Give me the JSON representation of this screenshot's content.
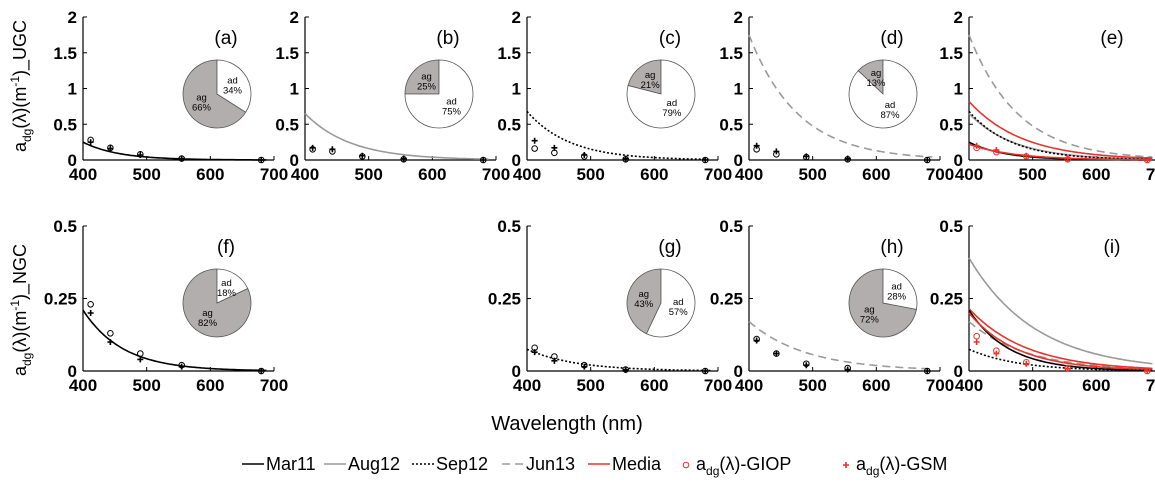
{
  "chart_data": {
    "type": "line",
    "xlabel": "Wavelength (nm)",
    "ylabel_top": "adg(λ)(m-1)_UGC",
    "ylabel_bottom": "adg(λ)(m-1)_NGC",
    "xlim": [
      400,
      700
    ],
    "xticks": [
      400,
      500,
      600,
      700
    ],
    "ylim_top": [
      0,
      2
    ],
    "yticks_top": [
      0,
      0.5,
      1,
      1.5,
      2
    ],
    "ylim_bottom": [
      0,
      0.5
    ],
    "yticks_bottom": [
      0,
      0.25,
      0.5
    ],
    "bands": [
      412,
      443,
      490,
      555,
      680
    ],
    "legend": [
      {
        "key": "mar11",
        "label": "Mar11",
        "style": "solid",
        "color": "#000000"
      },
      {
        "key": "aug12",
        "label": "Aug12",
        "style": "solid",
        "color": "#9a9a9a"
      },
      {
        "key": "sep12",
        "label": "Sep12",
        "style": "dotted",
        "color": "#000000"
      },
      {
        "key": "jun13",
        "label": "Jun13",
        "style": "dashed",
        "color": "#9a9a9a"
      },
      {
        "key": "media",
        "label": "Media",
        "style": "solid",
        "color": "#e8332a"
      },
      {
        "key": "giop",
        "label": "adg(λ)-GIOP",
        "style": "circle",
        "color": "#e8332a"
      },
      {
        "key": "gsm",
        "label": "adg(λ)-GSM",
        "style": "cross",
        "color": "#e8332a"
      }
    ],
    "pie_colors": {
      "ag": "#b3aeae",
      "ad": "#ffffff"
    },
    "panels": [
      {
        "id": "a",
        "row": 0,
        "col": 0,
        "label": "(a)",
        "curves": [
          {
            "series": "mar11",
            "a400": 0.25,
            "s": 0.018
          }
        ],
        "giop": [
          0.28,
          0.17,
          0.08,
          0.02,
          0.0
        ],
        "gsm": [
          0.25,
          0.16,
          0.07,
          0.02,
          0.0
        ],
        "marker_color": "#000000",
        "pie": {
          "ag": 66,
          "ad": 34,
          "ag_label": "ag\n66%",
          "ad_label": "ad\n34%"
        }
      },
      {
        "id": "b",
        "row": 0,
        "col": 1,
        "label": "(b)",
        "curves": [
          {
            "series": "aug12",
            "a400": 0.65,
            "s": 0.014
          }
        ],
        "giop": [
          0.15,
          0.12,
          0.05,
          0.01,
          0.0
        ],
        "gsm": [
          0.17,
          0.15,
          0.06,
          0.02,
          0.0
        ],
        "marker_color": "#000000",
        "pie": {
          "ag": 25,
          "ad": 75,
          "ag_label": "ag\n25%",
          "ad_label": "ad\n75%"
        }
      },
      {
        "id": "c",
        "row": 0,
        "col": 2,
        "label": "(c)",
        "curves": [
          {
            "series": "sep12",
            "a400": 0.68,
            "s": 0.015
          }
        ],
        "giop": [
          0.16,
          0.1,
          0.05,
          0.01,
          0.0
        ],
        "gsm": [
          0.27,
          0.17,
          0.07,
          0.02,
          0.0
        ],
        "marker_color": "#000000",
        "pie": {
          "ag": 21,
          "ad": 79,
          "ag_label": "ag\n21%",
          "ad_label": "ad\n79%"
        }
      },
      {
        "id": "d",
        "row": 0,
        "col": 3,
        "label": "(d)",
        "curves": [
          {
            "series": "jun13",
            "a400": 1.75,
            "s": 0.013
          }
        ],
        "giop": [
          0.15,
          0.08,
          0.04,
          0.01,
          0.0
        ],
        "gsm": [
          0.2,
          0.12,
          0.05,
          0.02,
          0.0
        ],
        "marker_color": "#000000",
        "pie": {
          "ag": 13,
          "ad": 87,
          "ag_label": "ag\n13%",
          "ad_label": "ad\n87%"
        }
      },
      {
        "id": "e",
        "row": 0,
        "col": 4,
        "label": "(e)",
        "curves": [
          {
            "series": "jun13",
            "a400": 1.75,
            "s": 0.013
          },
          {
            "series": "aug12",
            "a400": 0.65,
            "s": 0.014
          },
          {
            "series": "media",
            "a400": 0.82,
            "s": 0.012
          },
          {
            "series": "sep12",
            "a400": 0.68,
            "s": 0.015
          },
          {
            "series": "mar11",
            "a400": 0.25,
            "s": 0.018
          },
          {
            "series": "media",
            "a400": 0.22,
            "s": 0.014
          }
        ],
        "giop": [
          0.17,
          0.11,
          0.05,
          0.01,
          0.0
        ],
        "gsm": [
          0.2,
          0.14,
          0.06,
          0.02,
          0.0
        ],
        "marker_color": "#e8332a",
        "pie": null
      },
      {
        "id": "f",
        "row": 1,
        "col": 0,
        "label": "(f)",
        "curves": [
          {
            "series": "mar11",
            "a400": 0.21,
            "s": 0.016
          }
        ],
        "giop": [
          0.23,
          0.13,
          0.06,
          0.02,
          0.0
        ],
        "gsm": [
          0.2,
          0.1,
          0.04,
          0.015,
          0.0
        ],
        "marker_color": "#000000",
        "pie": {
          "ag": 82,
          "ad": 18,
          "ag_label": "ag\n82%",
          "ad_label": "ad\n18%"
        }
      },
      {
        "id": "g",
        "row": 1,
        "col": 2,
        "label": "(g)",
        "curves": [
          {
            "series": "sep12",
            "a400": 0.075,
            "s": 0.013
          }
        ],
        "giop": [
          0.08,
          0.05,
          0.02,
          0.005,
          0.0
        ],
        "gsm": [
          0.065,
          0.035,
          0.015,
          0.004,
          0.0
        ],
        "marker_color": "#000000",
        "pie": {
          "ag": 43,
          "ad": 57,
          "ag_label": "ag\n43%",
          "ad_label": "ad\n57%"
        }
      },
      {
        "id": "h",
        "row": 1,
        "col": 3,
        "label": "(h)",
        "curves": [
          {
            "series": "jun13",
            "a400": 0.17,
            "s": 0.011
          }
        ],
        "giop": [
          0.11,
          0.06,
          0.025,
          0.01,
          0.0
        ],
        "gsm": [
          0.105,
          0.06,
          0.02,
          0.005,
          0.0
        ],
        "marker_color": "#000000",
        "pie": {
          "ag": 72,
          "ad": 28,
          "ag_label": "ag\n72%",
          "ad_label": "ad\n28%"
        }
      },
      {
        "id": "i",
        "row": 1,
        "col": 4,
        "label": "(i)",
        "curves": [
          {
            "series": "aug12",
            "a400": 0.39,
            "s": 0.0095
          },
          {
            "series": "jun13",
            "a400": 0.17,
            "s": 0.011
          },
          {
            "series": "media",
            "a400": 0.215,
            "s": 0.011
          },
          {
            "series": "mar11",
            "a400": 0.21,
            "s": 0.016
          },
          {
            "series": "media",
            "a400": 0.2,
            "s": 0.013
          },
          {
            "series": "sep12",
            "a400": 0.075,
            "s": 0.013
          }
        ],
        "giop": [
          0.12,
          0.07,
          0.03,
          0.01,
          0.0
        ],
        "gsm": [
          0.1,
          0.06,
          0.025,
          0.008,
          0.0
        ],
        "marker_color": "#e8332a",
        "pie": null
      }
    ]
  }
}
